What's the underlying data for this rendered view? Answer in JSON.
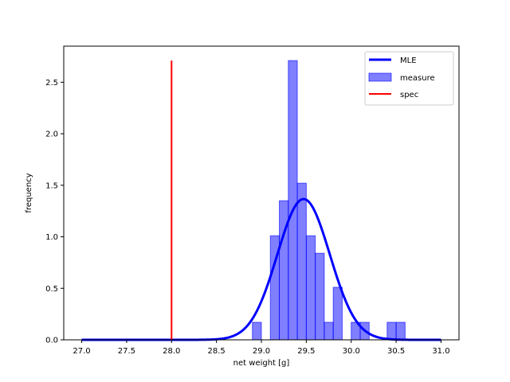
{
  "chart_data": {
    "type": "histogram",
    "xlabel": "net weight [g]",
    "ylabel": "frequency",
    "xlim": [
      26.8,
      31.2
    ],
    "ylim": [
      0,
      2.85
    ],
    "xticks": [
      27.0,
      27.5,
      28.0,
      28.5,
      29.0,
      29.5,
      30.0,
      30.5,
      31.0
    ],
    "xtick_labels": [
      "27.0",
      "27.5",
      "28.0",
      "28.5",
      "29.0",
      "29.5",
      "30.0",
      "30.5",
      "31.0"
    ],
    "yticks": [
      0.0,
      0.5,
      1.0,
      1.5,
      2.0,
      2.5
    ],
    "ytick_labels": [
      "0.0",
      "0.5",
      "1.0",
      "1.5",
      "2.0",
      "2.5"
    ],
    "grid": false,
    "legend_placement": "top-right",
    "histogram": {
      "name": "measure",
      "color": "#0000ff",
      "bin_width": 0.1,
      "bins": [
        {
          "x0": 28.9,
          "x1": 29.0,
          "value": 0.17
        },
        {
          "x0": 29.1,
          "x1": 29.2,
          "value": 1.01
        },
        {
          "x0": 29.2,
          "x1": 29.3,
          "value": 1.35
        },
        {
          "x0": 29.3,
          "x1": 29.4,
          "value": 2.71
        },
        {
          "x0": 29.4,
          "x1": 29.5,
          "value": 1.52
        },
        {
          "x0": 29.5,
          "x1": 29.6,
          "value": 1.01
        },
        {
          "x0": 29.6,
          "x1": 29.7,
          "value": 0.84
        },
        {
          "x0": 29.7,
          "x1": 29.8,
          "value": 0.17
        },
        {
          "x0": 29.8,
          "x1": 29.9,
          "value": 0.51
        },
        {
          "x0": 30.0,
          "x1": 30.1,
          "value": 0.17
        },
        {
          "x0": 30.1,
          "x1": 30.2,
          "value": 0.17
        },
        {
          "x0": 30.4,
          "x1": 30.5,
          "value": 0.17
        },
        {
          "x0": 30.5,
          "x1": 30.6,
          "value": 0.17
        }
      ]
    },
    "mle_curve": {
      "name": "MLE",
      "color": "#0000ff",
      "mean": 29.47,
      "std": 0.292,
      "x_range": [
        27.0,
        31.0
      ]
    },
    "spec_line": {
      "name": "spec",
      "color": "#ff0000",
      "x": 28.0,
      "y_range": [
        0,
        2.71
      ]
    },
    "legend": [
      {
        "label": "MLE",
        "kind": "line-thick",
        "color": "#0000ff"
      },
      {
        "label": "measure",
        "kind": "patch",
        "color": "#0000ff"
      },
      {
        "label": "spec",
        "kind": "line",
        "color": "#ff0000"
      }
    ]
  }
}
